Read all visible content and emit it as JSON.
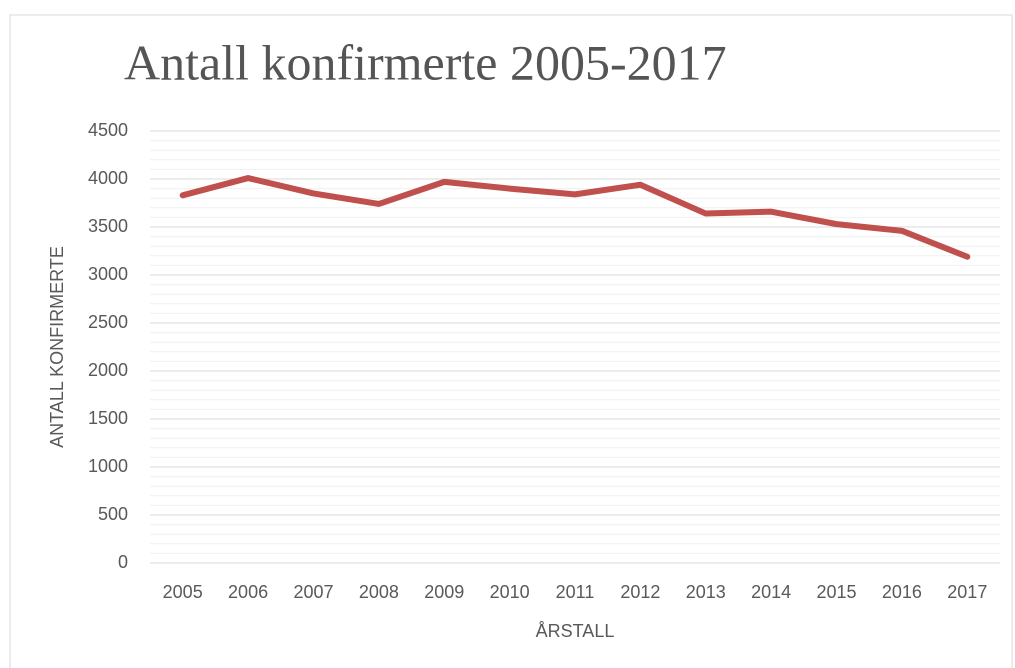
{
  "chart_data": {
    "type": "line",
    "title": "Antall konfirmerte  2005-2017",
    "x_label": "ÅRSTALL",
    "y_label": "ANTALL KONFIRMERTE",
    "categories": [
      "2005",
      "2006",
      "2007",
      "2008",
      "2009",
      "2010",
      "2011",
      "2012",
      "2013",
      "2014",
      "2015",
      "2016",
      "2017"
    ],
    "series": [
      {
        "name": "Antall konfirmerte",
        "color": "#c0504d",
        "values": [
          3830,
          4010,
          3850,
          3740,
          3970,
          3900,
          3840,
          3940,
          3640,
          3660,
          3530,
          3460,
          3190
        ]
      }
    ],
    "ylim": [
      0,
      4500
    ],
    "yticks": [
      0,
      500,
      1000,
      1500,
      2000,
      2500,
      3000,
      3500,
      4000,
      4500
    ],
    "grid": true,
    "minor_grid": true
  }
}
